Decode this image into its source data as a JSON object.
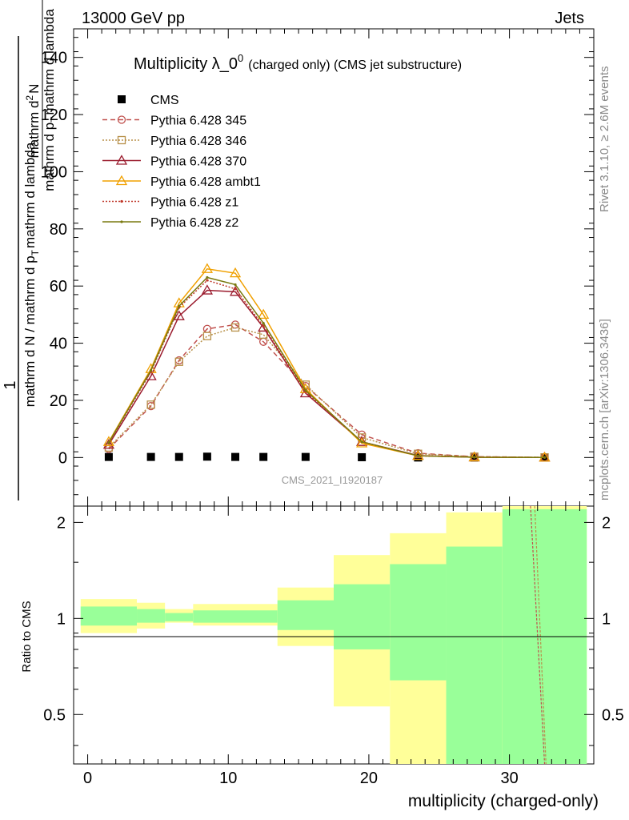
{
  "header": {
    "left": "13000 GeV pp",
    "right": "Jets"
  },
  "side_labels": {
    "rivet": "Rivet 3.1.10, ≥ 2.6M events",
    "mcplots": "mcplots.cern.ch [arXiv:1306.3436]"
  },
  "watermark": "CMS_2021_I1920187",
  "chart_data": [
    {
      "type": "line",
      "title_main": "Multiplicity λ_0",
      "title_sup": "0",
      "title_small": "(charged only) (CMS jet substructure)",
      "ylabel_num": "1",
      "ylabel_den": "mathrm d N / mathrm d p",
      "ylabel_den_sub": "T",
      "ylabel_den_tail": "mathrm d lambda",
      "ylabel_num2": "mathrm d",
      "ylabel_num2_sup": "2",
      "ylabel_num2_tail": "N",
      "ylabel_den2": "mathrm d p",
      "ylabel_den2_sub": "T",
      "ylabel_den2_tail": "mathrm d lambda",
      "xlim": [
        -1,
        36
      ],
      "ylim": [
        -17,
        150
      ],
      "yticks": [
        0,
        20,
        40,
        60,
        80,
        100,
        120,
        140
      ],
      "colors": {
        "CMS": "#000000",
        "p345": "#c0504d",
        "p346": "#b8914a",
        "p370": "#9b1c2e",
        "ambt1": "#f0a000",
        "z1": "#c0392b",
        "z2": "#7a7a10"
      },
      "series": [
        {
          "name": "CMS",
          "key": "CMS",
          "style": "data",
          "x": [
            1.5,
            4.5,
            6.5,
            8.5,
            10.5,
            12.5,
            15.5,
            19.5,
            23.5,
            27.5,
            32.5
          ],
          "y": [
            0.2,
            0.2,
            0.2,
            0.3,
            0.2,
            0.2,
            0.2,
            0.1,
            0.0,
            0.0,
            0.0
          ]
        },
        {
          "name": "Pythia 6.428 345",
          "key": "p345",
          "style": "dashed",
          "marker": "circle",
          "x": [
            1.5,
            4.5,
            6.5,
            8.5,
            10.5,
            12.5,
            15.5,
            19.5,
            23.5,
            27.5,
            32.5
          ],
          "y": [
            3.0,
            18.0,
            34.0,
            45.0,
            46.5,
            40.5,
            25.0,
            8.0,
            1.5,
            0.3,
            0.05
          ]
        },
        {
          "name": "Pythia 6.428 346",
          "key": "p346",
          "style": "dotted",
          "marker": "square",
          "x": [
            1.5,
            4.5,
            6.5,
            8.5,
            10.5,
            12.5,
            15.5,
            19.5,
            23.5,
            27.5,
            32.5
          ],
          "y": [
            3.5,
            18.5,
            33.5,
            42.5,
            45.5,
            43.0,
            25.5,
            7.0,
            1.3,
            0.3,
            0.05
          ]
        },
        {
          "name": "Pythia 6.428 370",
          "key": "p370",
          "style": "solid",
          "marker": "triangle",
          "x": [
            1.5,
            4.5,
            6.5,
            8.5,
            10.5,
            12.5,
            15.5,
            19.5,
            23.5,
            27.5,
            32.5
          ],
          "y": [
            4.5,
            28.5,
            49.5,
            58.5,
            58.0,
            45.5,
            22.5,
            5.5,
            0.7,
            0.1,
            0.02
          ]
        },
        {
          "name": "Pythia 6.428 ambt1",
          "key": "ambt1",
          "style": "solid",
          "marker": "triangle",
          "x": [
            1.5,
            4.5,
            6.5,
            8.5,
            10.5,
            12.5,
            15.5,
            19.5,
            23.5,
            27.5,
            32.5
          ],
          "y": [
            5.5,
            31.0,
            54.0,
            66.0,
            64.5,
            50.0,
            24.0,
            5.0,
            0.6,
            0.1,
            0.02
          ]
        },
        {
          "name": "Pythia 6.428 z1",
          "key": "z1",
          "style": "dotted",
          "marker": "dot",
          "x": [
            1.5,
            4.5,
            6.5,
            8.5,
            10.5,
            12.5,
            15.5,
            19.5,
            23.5,
            27.5,
            32.5
          ],
          "y": [
            5.0,
            30.0,
            52.5,
            62.0,
            59.0,
            46.0,
            23.0,
            5.5,
            0.6,
            0.1,
            0.02
          ]
        },
        {
          "name": "Pythia 6.428 z2",
          "key": "z2",
          "style": "solid",
          "marker": "dot",
          "x": [
            1.5,
            4.5,
            6.5,
            8.5,
            10.5,
            12.5,
            15.5,
            19.5,
            23.5,
            27.5,
            32.5
          ],
          "y": [
            5.2,
            30.5,
            53.0,
            63.0,
            60.5,
            47.0,
            23.5,
            5.5,
            0.6,
            0.1,
            0.02
          ]
        }
      ]
    },
    {
      "type": "ratio",
      "ylabel": "Ratio to CMS",
      "xlabel": "multiplicity (charged-only)",
      "xlim": [
        -1,
        36
      ],
      "ylim": [
        0.35,
        2.25
      ],
      "yticks": [
        0.5,
        1,
        2
      ],
      "ytick_labels": [
        "0.5",
        "1",
        "2"
      ],
      "xticks": [
        0,
        10,
        20,
        30
      ],
      "band_colors": {
        "outer": "#ffff99",
        "inner": "#99ff99"
      },
      "bands": [
        {
          "x0": -0.5,
          "x1": 3.5,
          "outer": [
            0.9,
            1.15
          ],
          "inner": [
            0.95,
            1.09
          ]
        },
        {
          "x0": 3.5,
          "x1": 5.5,
          "outer": [
            0.93,
            1.12
          ],
          "inner": [
            0.97,
            1.07
          ]
        },
        {
          "x0": 5.5,
          "x1": 7.5,
          "outer": [
            0.97,
            1.07
          ],
          "inner": [
            0.98,
            1.04
          ]
        },
        {
          "x0": 7.5,
          "x1": 13.5,
          "outer": [
            0.95,
            1.11
          ],
          "inner": [
            0.97,
            1.06
          ]
        },
        {
          "x0": 13.5,
          "x1": 17.5,
          "outer": [
            0.82,
            1.25
          ],
          "inner": [
            0.92,
            1.14
          ]
        },
        {
          "x0": 17.5,
          "x1": 21.5,
          "outer": [
            0.53,
            1.58
          ],
          "inner": [
            0.8,
            1.28
          ]
        },
        {
          "x0": 21.5,
          "x1": 25.5,
          "outer": [
            0.3,
            1.85
          ],
          "inner": [
            0.64,
            1.48
          ]
        },
        {
          "x0": 25.5,
          "x1": 29.5,
          "outer": [
            0.3,
            2.15
          ],
          "inner": [
            0.3,
            1.68
          ]
        },
        {
          "x0": 29.5,
          "x1": 35.5,
          "outer": [
            0.3,
            2.4
          ],
          "inner": [
            0.3,
            2.2
          ]
        }
      ],
      "model_lines": [
        {
          "key": "p345",
          "x": [
            31.5,
            32.5
          ],
          "y": [
            2.6,
            0.3
          ]
        },
        {
          "key": "p346",
          "x": [
            31.8,
            32.6
          ],
          "y": [
            2.6,
            0.3
          ]
        }
      ]
    }
  ]
}
